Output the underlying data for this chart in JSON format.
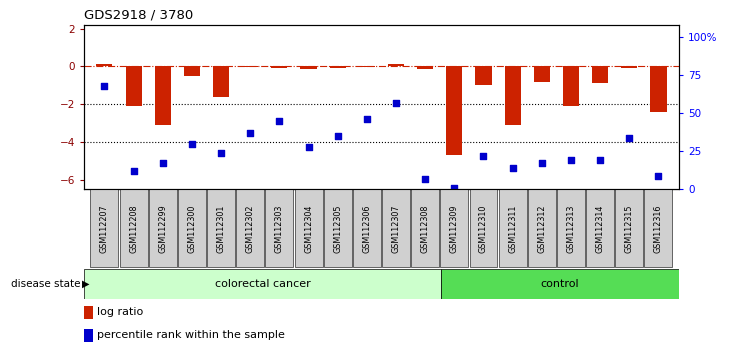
{
  "title": "GDS2918 / 3780",
  "samples": [
    "GSM112207",
    "GSM112208",
    "GSM112299",
    "GSM112300",
    "GSM112301",
    "GSM112302",
    "GSM112303",
    "GSM112304",
    "GSM112305",
    "GSM112306",
    "GSM112307",
    "GSM112308",
    "GSM112309",
    "GSM112310",
    "GSM112311",
    "GSM112312",
    "GSM112313",
    "GSM112314",
    "GSM112315",
    "GSM112316"
  ],
  "log_ratio": [
    0.15,
    -2.1,
    -3.1,
    -0.5,
    -1.6,
    -0.05,
    -0.1,
    -0.15,
    -0.08,
    -0.05,
    0.12,
    -0.12,
    -4.7,
    -1.0,
    -3.1,
    -0.8,
    -2.1,
    -0.9,
    -0.1,
    -2.4
  ],
  "percentile": [
    68,
    12,
    17,
    30,
    24,
    37,
    45,
    28,
    35,
    46,
    57,
    7,
    1,
    22,
    14,
    17,
    19,
    19,
    34,
    9
  ],
  "colorectal_count": 12,
  "control_count": 8,
  "ylim_left": [
    -6.5,
    2.2
  ],
  "ylim_right": [
    0,
    108
  ],
  "yticks_left": [
    2,
    0,
    -2,
    -4,
    -6
  ],
  "yticks_right": [
    0,
    25,
    50,
    75,
    100
  ],
  "ytick_labels_right": [
    "0",
    "25",
    "50",
    "75",
    "100%"
  ],
  "bar_color": "#cc2200",
  "dot_color": "#0000cc",
  "hline_color": "#cc2200",
  "dotted_line_color": "#000000",
  "bg_color": "#ffffff",
  "cancer_label": "colorectal cancer",
  "control_label": "control",
  "disease_state_label": "disease state",
  "legend_bar_label": "log ratio",
  "legend_dot_label": "percentile rank within the sample",
  "cancer_color": "#ccffcc",
  "control_color": "#55dd55",
  "xtick_bg_color": "#d0d0d0"
}
